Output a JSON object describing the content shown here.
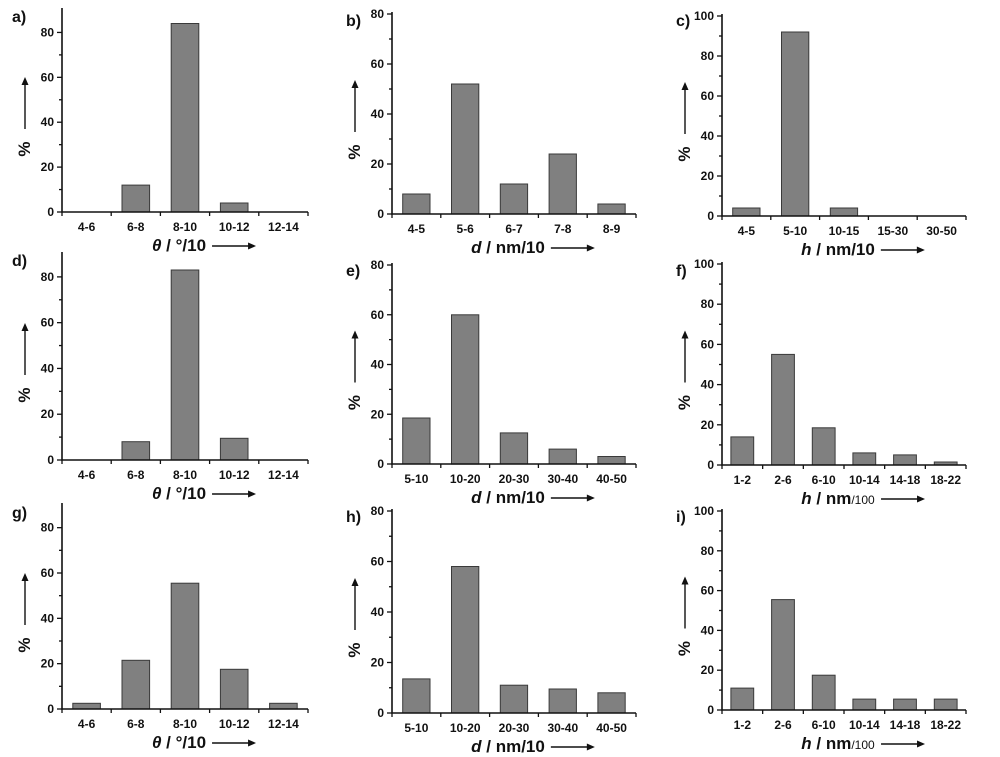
{
  "chart_data": [
    {
      "label": "a)",
      "type": "bar",
      "categories": [
        "4-6",
        "6-8",
        "8-10",
        "10-12",
        "12-14"
      ],
      "values": [
        0,
        12,
        84,
        4,
        0
      ],
      "ylim": [
        0,
        90
      ],
      "yticks": [
        0,
        20,
        40,
        60,
        80
      ],
      "ylabel": "%",
      "xlabel_var": "θ",
      "xlabel_unit": " / °/10",
      "xlabel_unit_sub": ""
    },
    {
      "label": "b)",
      "type": "bar",
      "categories": [
        "4-5",
        "5-6",
        "6-7",
        "7-8",
        "8-9"
      ],
      "values": [
        8,
        52,
        12,
        24,
        4
      ],
      "ylim": [
        0,
        80
      ],
      "yticks": [
        0,
        20,
        40,
        60,
        80
      ],
      "ylabel": "%",
      "xlabel_var": "d",
      "xlabel_unit": " / nm/10",
      "xlabel_unit_sub": ""
    },
    {
      "label": "c)",
      "type": "bar",
      "categories": [
        "4-5",
        "5-10",
        "10-15",
        "15-30",
        "30-50"
      ],
      "values": [
        4,
        92,
        4,
        0,
        0
      ],
      "ylim": [
        0,
        100
      ],
      "yticks": [
        0,
        20,
        40,
        60,
        80,
        100
      ],
      "ylabel": "%",
      "xlabel_var": "h",
      "xlabel_unit": " / nm/10",
      "xlabel_unit_sub": ""
    },
    {
      "label": "d)",
      "type": "bar",
      "categories": [
        "4-6",
        "6-8",
        "8-10",
        "10-12",
        "12-14"
      ],
      "values": [
        0,
        8,
        83,
        9.5,
        0
      ],
      "ylim": [
        0,
        90
      ],
      "yticks": [
        0,
        20,
        40,
        60,
        80
      ],
      "ylabel": "%",
      "xlabel_var": "θ",
      "xlabel_unit": " / °/10",
      "xlabel_unit_sub": ""
    },
    {
      "label": "e)",
      "type": "bar",
      "categories": [
        "5-10",
        "10-20",
        "20-30",
        "30-40",
        "40-50"
      ],
      "values": [
        18.5,
        60,
        12.5,
        6,
        3
      ],
      "ylim": [
        0,
        80
      ],
      "yticks": [
        0,
        20,
        40,
        60,
        80
      ],
      "ylabel": "%",
      "xlabel_var": "d",
      "xlabel_unit": " / nm/10",
      "xlabel_unit_sub": ""
    },
    {
      "label": "f)",
      "type": "bar",
      "categories": [
        "1-2",
        "2-6",
        "6-10",
        "10-14",
        "14-18",
        "18-22"
      ],
      "values": [
        14,
        55,
        18.5,
        6,
        5,
        1.5
      ],
      "ylim": [
        0,
        100
      ],
      "yticks": [
        0,
        20,
        40,
        60,
        80,
        100
      ],
      "ylabel": "%",
      "xlabel_var": "h",
      "xlabel_unit": " / nm",
      "xlabel_unit_sub": "/100"
    },
    {
      "label": "g)",
      "type": "bar",
      "categories": [
        "4-6",
        "6-8",
        "8-10",
        "10-12",
        "12-14"
      ],
      "values": [
        2.5,
        21.5,
        55.5,
        17.5,
        2.5
      ],
      "ylim": [
        0,
        90
      ],
      "yticks": [
        0,
        20,
        40,
        60,
        80
      ],
      "ylabel": "%",
      "xlabel_var": "θ",
      "xlabel_unit": " / °/10",
      "xlabel_unit_sub": ""
    },
    {
      "label": "h)",
      "type": "bar",
      "categories": [
        "5-10",
        "10-20",
        "20-30",
        "30-40",
        "40-50"
      ],
      "values": [
        13.5,
        58,
        11,
        9.5,
        8
      ],
      "ylim": [
        0,
        80
      ],
      "yticks": [
        0,
        20,
        40,
        60,
        80
      ],
      "ylabel": "%",
      "xlabel_var": "d",
      "xlabel_unit": " / nm/10",
      "xlabel_unit_sub": ""
    },
    {
      "label": "i)",
      "type": "bar",
      "categories": [
        "1-2",
        "2-6",
        "6-10",
        "10-14",
        "14-18",
        "18-22"
      ],
      "values": [
        11,
        55.5,
        17.5,
        5.5,
        5.5,
        5.5
      ],
      "ylim": [
        0,
        100
      ],
      "yticks": [
        0,
        20,
        40,
        60,
        80,
        100
      ],
      "ylabel": "%",
      "xlabel_var": "h",
      "xlabel_unit": " / nm",
      "xlabel_unit_sub": "/100"
    }
  ]
}
